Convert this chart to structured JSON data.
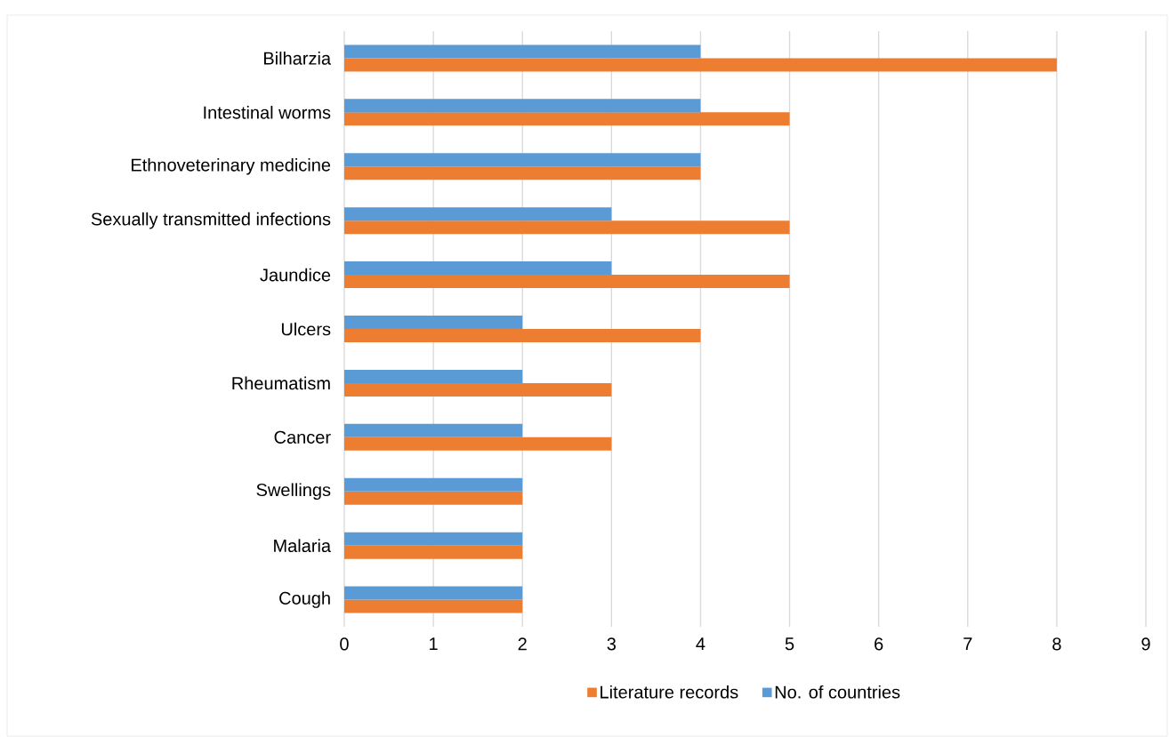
{
  "chart_data": {
    "type": "bar",
    "orientation": "horizontal",
    "categories": [
      "Bilharzia",
      "Intestinal worms",
      "Ethnoveterinary medicine",
      "Sexually transmitted infections",
      "Jaundice",
      "Ulcers",
      "Rheumatism",
      "Cancer",
      "Swellings",
      "Malaria",
      "Cough"
    ],
    "series": [
      {
        "name": "Literature records",
        "color": "#ed7d31",
        "values": [
          8,
          5,
          4,
          5,
          5,
          4,
          3,
          3,
          2,
          2,
          2
        ]
      },
      {
        "name": "No. of countries",
        "color": "#5b9bd5",
        "values": [
          4,
          4,
          4,
          3,
          3,
          2,
          2,
          2,
          2,
          2,
          2
        ]
      }
    ],
    "xlim": [
      0,
      9
    ],
    "xticks": [
      0,
      1,
      2,
      3,
      4,
      5,
      6,
      7,
      8,
      9
    ],
    "grid": "x",
    "legend": "bottom"
  }
}
